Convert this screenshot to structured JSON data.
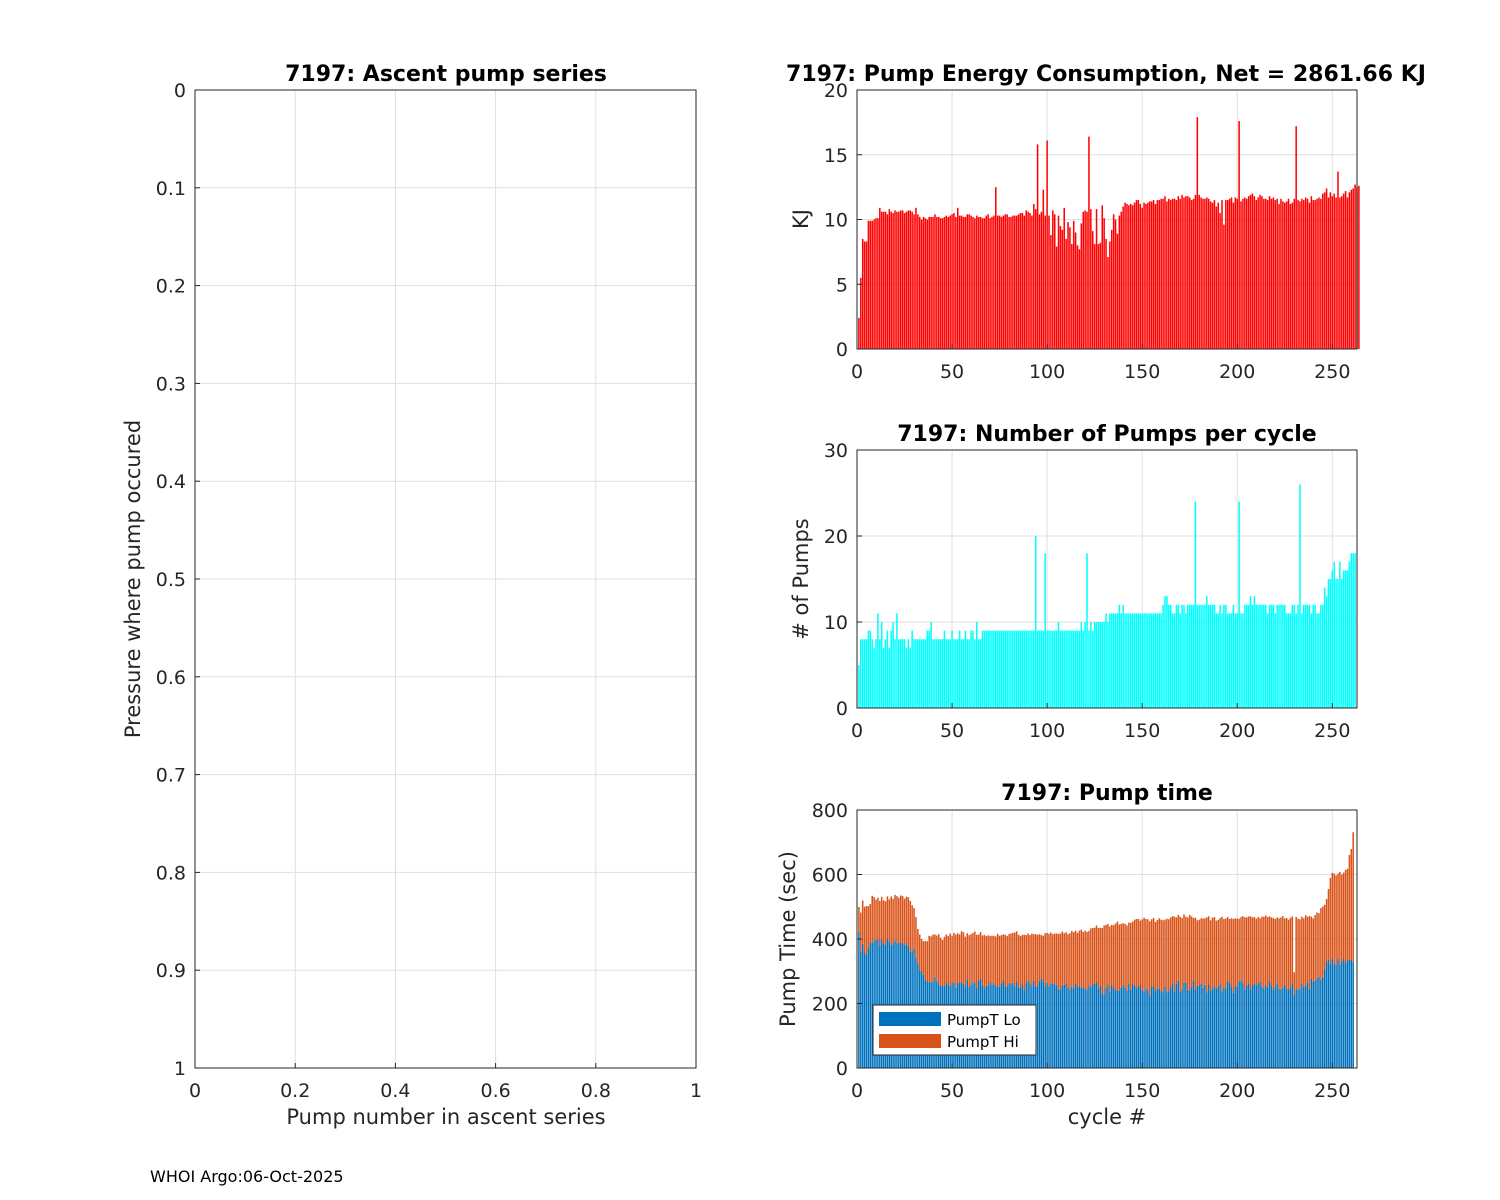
{
  "footer": "WHOI Argo:06-Oct-2025",
  "colors": {
    "energy": "#ff0000",
    "pumps": "#00ffff",
    "lo": "#0072bd",
    "hi": "#d95319"
  },
  "chart_data": [
    {
      "id": "ascent",
      "type": "line",
      "title": "7197: Ascent pump series",
      "xlabel": "Pump number in ascent series",
      "ylabel": "Pressure where pump occured",
      "xlim": [
        0,
        1
      ],
      "ylim": [
        0,
        1
      ],
      "y_reversed": true,
      "xticks": [
        "0",
        "0.2",
        "0.4",
        "0.6",
        "0.8",
        "1"
      ],
      "yticks": [
        "0",
        "0.1",
        "0.2",
        "0.3",
        "0.4",
        "0.5",
        "0.6",
        "0.7",
        "0.8",
        "0.9",
        "1"
      ],
      "grid": true,
      "series": []
    },
    {
      "id": "energy",
      "type": "bar",
      "title": "7197: Pump Energy Consumption,  Net = 2861.66 KJ",
      "xlabel": "",
      "ylabel": "KJ",
      "xlim": [
        0,
        263
      ],
      "ylim": [
        0,
        20
      ],
      "xticks": [
        "0",
        "50",
        "100",
        "150",
        "200",
        "250"
      ],
      "yticks": [
        "0",
        "5",
        "10",
        "15",
        "20"
      ],
      "grid": true,
      "x_start": 1,
      "values": [
        2.4,
        5.5,
        8.5,
        8.3,
        8.3,
        9.9,
        9.9,
        9.9,
        10.0,
        10.1,
        10.1,
        10.9,
        10.6,
        10.6,
        10.6,
        10.4,
        10.8,
        10.6,
        10.5,
        10.7,
        10.6,
        10.6,
        10.7,
        10.7,
        10.5,
        10.6,
        10.7,
        10.7,
        10.6,
        10.4,
        10.9,
        10.4,
        10.2,
        10.0,
        10.2,
        10.1,
        10.0,
        10.2,
        10.2,
        10.2,
        10.4,
        10.2,
        10.2,
        10.1,
        10.1,
        10.2,
        10.3,
        10.2,
        10.3,
        10.4,
        10.5,
        10.2,
        10.9,
        10.3,
        10.3,
        10.2,
        10.2,
        10.4,
        10.4,
        10.3,
        10.2,
        10.1,
        10.3,
        10.2,
        10.2,
        10.1,
        10.1,
        10.3,
        10.4,
        10.1,
        10.2,
        10.3,
        12.5,
        10.3,
        10.3,
        10.2,
        10.3,
        10.4,
        10.4,
        10.2,
        10.2,
        10.3,
        10.3,
        10.3,
        10.4,
        10.5,
        10.5,
        10.3,
        10.7,
        10.6,
        10.5,
        10.3,
        11.2,
        10.8,
        15.8,
        10.4,
        10.6,
        12.3,
        10.3,
        16.1,
        10.3,
        8.8,
        10.7,
        10.4,
        7.9,
        10.3,
        9.5,
        9.2,
        10.9,
        8.5,
        9.8,
        9.4,
        8.1,
        9.9,
        9.0,
        8.0,
        7.7,
        9.7,
        10.6,
        10.7,
        10.6,
        16.4,
        10.8,
        9.1,
        8.1,
        10.8,
        8.1,
        8.2,
        11.1,
        10.1,
        8.5,
        7.1,
        8.3,
        9.2,
        10.4,
        10.0,
        8.9,
        10.3,
        10.6,
        11.0,
        11.3,
        11.2,
        11.1,
        11.2,
        11.1,
        11.3,
        11.5,
        11.5,
        11.2,
        10.9,
        11.3,
        11.2,
        11.3,
        11.4,
        11.4,
        11.5,
        11.2,
        11.5,
        11.5,
        11.6,
        11.6,
        11.8,
        11.4,
        11.6,
        11.5,
        11.6,
        11.6,
        11.5,
        11.8,
        11.6,
        11.9,
        11.7,
        11.8,
        11.8,
        11.7,
        11.5,
        11.6,
        11.9,
        17.9,
        11.9,
        11.7,
        11.6,
        11.6,
        11.7,
        11.6,
        11.4,
        11.3,
        11.5,
        11.0,
        11.3,
        10.5,
        11.5,
        9.6,
        11.5,
        11.5,
        11.6,
        11.7,
        11.3,
        11.7,
        11.6,
        17.6,
        11.4,
        11.6,
        11.7,
        11.6,
        11.8,
        11.9,
        12.0,
        11.8,
        11.5,
        11.7,
        11.9,
        11.8,
        11.6,
        11.6,
        11.5,
        11.8,
        11.6,
        11.7,
        11.5,
        11.6,
        11.2,
        11.6,
        11.4,
        11.3,
        11.4,
        11.6,
        11.2,
        11.3,
        11.6,
        17.2,
        11.5,
        11.4,
        11.6,
        11.5,
        11.7,
        11.6,
        11.3,
        11.8,
        11.5,
        11.5,
        11.6,
        11.7,
        11.6,
        12.0,
        12.1,
        12.4,
        11.7,
        12.1,
        11.8,
        12.0,
        11.7,
        13.7,
        11.7,
        11.8,
        12.0,
        12.2,
        11.7,
        12.1,
        12.3,
        12.4,
        12.7,
        12.5,
        12.6
      ]
    },
    {
      "id": "pumps",
      "type": "bar",
      "title": "7197: Number of Pumps per cycle",
      "xlabel": "",
      "ylabel": "# of Pumps",
      "xlim": [
        0,
        263
      ],
      "ylim": [
        0,
        30
      ],
      "xticks": [
        "0",
        "50",
        "100",
        "150",
        "200",
        "250"
      ],
      "yticks": [
        "0",
        "10",
        "20",
        "30"
      ],
      "grid": true,
      "x_start": 1,
      "values": [
        5,
        8,
        8,
        8,
        8,
        9,
        9,
        8,
        7,
        8,
        11,
        8,
        10,
        7,
        8,
        9,
        7,
        9,
        10,
        8,
        11,
        8,
        8,
        8,
        8,
        7,
        8,
        7,
        9,
        8,
        8,
        8,
        8,
        8,
        8,
        8,
        9,
        9,
        10,
        8,
        8,
        8,
        8,
        8,
        8,
        9,
        8,
        8,
        8,
        9,
        8,
        8,
        8,
        9,
        8,
        8,
        9,
        8,
        8,
        9,
        9,
        8,
        10,
        8,
        8,
        9,
        9,
        9,
        9,
        9,
        9,
        9,
        9,
        9,
        9,
        9,
        9,
        9,
        9,
        9,
        9,
        9,
        9,
        9,
        9,
        9,
        9,
        9,
        9,
        9,
        9,
        9,
        9,
        20,
        9,
        9,
        9,
        9,
        18,
        9,
        9,
        9,
        9,
        9,
        9,
        10,
        9,
        9,
        9,
        9,
        9,
        9,
        9,
        9,
        9,
        9,
        9,
        10,
        9,
        10,
        18,
        9,
        10,
        9,
        10,
        10,
        10,
        10,
        10,
        10,
        11,
        10,
        11,
        11,
        11,
        11,
        11,
        12,
        11,
        12,
        11,
        11,
        11,
        11,
        11,
        11,
        11,
        11,
        11,
        11,
        11,
        11,
        11,
        11,
        11,
        11,
        11,
        11,
        11,
        11,
        12,
        13,
        13,
        12,
        12,
        11,
        11,
        12,
        12,
        11,
        12,
        12,
        11,
        12,
        12,
        12,
        12,
        24,
        12,
        12,
        12,
        12,
        12,
        13,
        12,
        12,
        12,
        12,
        11,
        11,
        12,
        11,
        12,
        12,
        11,
        11,
        11,
        12,
        11,
        11,
        24,
        11,
        11,
        12,
        12,
        12,
        13,
        12,
        13,
        12,
        12,
        12,
        12,
        12,
        12,
        11,
        12,
        12,
        12,
        11,
        12,
        12,
        12,
        12,
        12,
        11,
        11,
        11,
        12,
        12,
        11,
        12,
        26,
        11,
        12,
        12,
        12,
        12,
        11,
        12,
        12,
        11,
        11,
        12,
        12,
        14,
        13,
        15,
        15,
        16,
        17,
        15,
        15,
        17,
        15,
        16,
        16,
        16,
        17,
        18,
        18,
        18
      ]
    },
    {
      "id": "pumptime",
      "type": "bar",
      "stacked": true,
      "title": "7197: Pump time",
      "xlabel": "cycle #",
      "ylabel": "Pump Time (sec)",
      "xlim": [
        0,
        263
      ],
      "ylim": [
        0,
        800
      ],
      "xticks": [
        "0",
        "50",
        "100",
        "150",
        "200",
        "250"
      ],
      "yticks": [
        "0",
        "200",
        "400",
        "600",
        "800"
      ],
      "grid": true,
      "legend_loc": "bottom-left",
      "x_start": 1,
      "series": [
        {
          "name": "PumpT Lo",
          "values": [
            422,
            362,
            385,
            355,
            350,
            372,
            389,
            388,
            393,
            399,
            399,
            380,
            399,
            387,
            381,
            401,
            393,
            382,
            386,
            396,
            386,
            390,
            388,
            387,
            380,
            384,
            378,
            362,
            362,
            371,
            343,
            326,
            303,
            300,
            289,
            272,
            268,
            268,
            266,
            268,
            283,
            268,
            260,
            255,
            254,
            254,
            262,
            260,
            255,
            265,
            266,
            249,
            262,
            266,
            266,
            261,
            252,
            275,
            251,
            258,
            266,
            262,
            250,
            272,
            277,
            256,
            247,
            255,
            257,
            266,
            258,
            264,
            253,
            254,
            251,
            263,
            271,
            252,
            254,
            264,
            259,
            264,
            254,
            268,
            250,
            248,
            259,
            240,
            262,
            270,
            263,
            254,
            271,
            253,
            253,
            270,
            278,
            269,
            254,
            264,
            253,
            263,
            262,
            260,
            258,
            244,
            244,
            255,
            258,
            262,
            248,
            244,
            252,
            247,
            263,
            252,
            254,
            249,
            250,
            247,
            242,
            256,
            251,
            260,
            261,
            265,
            246,
            255,
            232,
            229,
            249,
            260,
            238,
            256,
            250,
            244,
            240,
            239,
            249,
            256,
            250,
            241,
            262,
            242,
            259,
            255,
            247,
            253,
            256,
            241,
            237,
            247,
            241,
            226,
            253,
            254,
            239,
            245,
            245,
            240,
            235,
            253,
            238,
            238,
            250,
            263,
            238,
            261,
            271,
            238,
            243,
            266,
            264,
            242,
            240,
            251,
            270,
            243,
            253,
            256,
            262,
            249,
            258,
            234,
            259,
            240,
            246,
            254,
            245,
            252,
            260,
            238,
            250,
            245,
            269,
            266,
            251,
            233,
            253,
            253,
            270,
            270,
            263,
            244,
            256,
            263,
            243,
            256,
            262,
            256,
            262,
            268,
            251,
            247,
            254,
            250,
            270,
            256,
            243,
            252,
            262,
            246,
            244,
            249,
            258,
            245,
            244,
            249,
            262,
            227,
            247,
            242,
            245,
            262,
            252,
            253,
            266,
            244,
            276,
            268,
            270,
            278,
            283,
            274,
            283,
            306,
            330,
            335,
            322,
            339,
            325,
            320,
            340,
            320,
            331,
            338,
            325,
            334,
            335,
            337,
            329
          ]
        },
        {
          "name": "PumpT Hi",
          "values": [
            77,
            120,
            134,
            145,
            152,
            130,
            120,
            146,
            137,
            123,
            129,
            138,
            132,
            133,
            136,
            131,
            130,
            150,
            139,
            141,
            147,
            138,
            147,
            146,
            145,
            147,
            152,
            156,
            143,
            125,
            125,
            105,
            111,
            100,
            104,
            122,
            125,
            142,
            142,
            146,
            131,
            143,
            155,
            149,
            143,
            153,
            152,
            149,
            162,
            145,
            153,
            165,
            156,
            148,
            158,
            160,
            155,
            143,
            161,
            157,
            153,
            161,
            163,
            142,
            145,
            155,
            166,
            154,
            154,
            144,
            152,
            146,
            155,
            162,
            159,
            149,
            143,
            161,
            155,
            151,
            158,
            155,
            166,
            156,
            163,
            161,
            154,
            173,
            150,
            147,
            149,
            163,
            144,
            162,
            160,
            145,
            134,
            141,
            164,
            155,
            163,
            157,
            153,
            157,
            159,
            172,
            173,
            168,
            160,
            159,
            167,
            174,
            173,
            174,
            163,
            167,
            172,
            180,
            172,
            179,
            180,
            169,
            182,
            174,
            174,
            177,
            188,
            180,
            202,
            213,
            195,
            186,
            201,
            188,
            193,
            204,
            214,
            206,
            198,
            193,
            197,
            201,
            189,
            208,
            195,
            205,
            215,
            209,
            201,
            220,
            229,
            215,
            220,
            229,
            208,
            211,
            214,
            214,
            219,
            220,
            223,
            207,
            225,
            223,
            217,
            208,
            231,
            206,
            204,
            231,
            222,
            210,
            205,
            225,
            235,
            219,
            195,
            223,
            205,
            204,
            202,
            215,
            206,
            233,
            211,
            218,
            220,
            214,
            212,
            207,
            205,
            231,
            212,
            219,
            199,
            196,
            213,
            229,
            211,
            210,
            193,
            198,
            208,
            223,
            211,
            207,
            227,
            211,
            206,
            207,
            206,
            196,
            218,
            222,
            219,
            218,
            200,
            211,
            222,
            210,
            205,
            218,
            223,
            222,
            206,
            220,
            216,
            217,
            208,
            70,
            221,
            221,
            216,
            207,
            212,
            221,
            203,
            227,
            193,
            196,
            204,
            204,
            197,
            222,
            218,
            200,
            194,
            220,
            267,
            266,
            278,
            277,
            263,
            288,
            269,
            268,
            289,
            284,
            326,
            342,
            402
          ]
        }
      ]
    }
  ]
}
